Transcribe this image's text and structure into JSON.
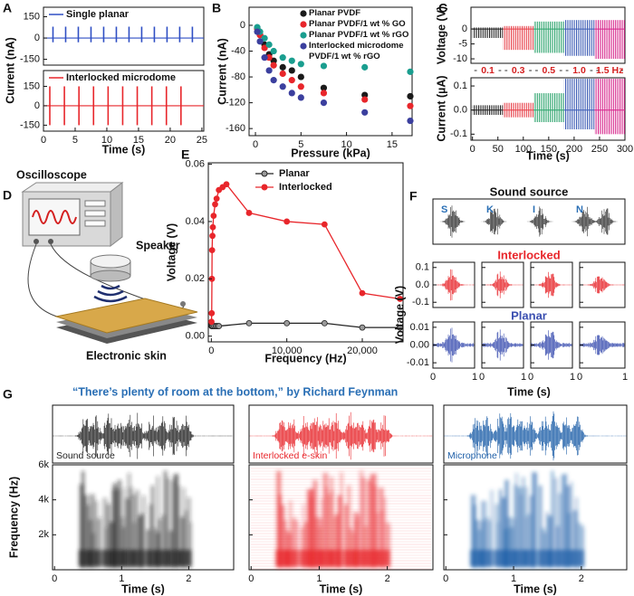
{
  "panel_labels": [
    "A",
    "B",
    "C",
    "D",
    "E",
    "F",
    "G"
  ],
  "chart_data": [
    {
      "type": "spike",
      "ylabel": "Current (nA)",
      "legend": "Single planar",
      "color": "#2f4fc4",
      "xlim": [
        0,
        25.3
      ],
      "ylim": [
        -191,
        217
      ],
      "yticks": [
        150,
        0,
        -150
      ],
      "x": [
        1.5,
        3.5,
        5.5,
        7.5,
        9.5,
        11.5,
        13.5,
        15.5,
        17.5,
        19.5,
        21.5,
        23.5
      ],
      "values": [
        80,
        80,
        80,
        80,
        80,
        80,
        80,
        80,
        80,
        80,
        80,
        80
      ],
      "troughs": [
        -30,
        -30,
        -30,
        -30,
        -30,
        -30,
        -30,
        -30,
        -30,
        -30,
        -30,
        -30
      ]
    },
    {
      "type": "spike",
      "legend": "Interlocked microdome",
      "color": "#e8262b",
      "xlim": [
        0,
        25.3
      ],
      "ylim": [
        -196,
        272
      ],
      "yticks": [
        150,
        0,
        -150
      ],
      "xticks": [
        0,
        5,
        10,
        15,
        20,
        25
      ],
      "xlabel": "Time (s)",
      "x": [
        1,
        3.3,
        5.6,
        7.9,
        10.2,
        12.5,
        14.8,
        17.1,
        19.4,
        21.7
      ],
      "values": [
        150,
        150,
        150,
        150,
        150,
        150,
        150,
        150,
        150,
        150
      ],
      "troughs": [
        -150,
        -150,
        -150,
        -150,
        -150,
        -150,
        -150,
        -150,
        -150,
        -150
      ]
    },
    {
      "type": "scatter",
      "ylabel": "Current (nA)",
      "xlabel": "Pressure (kPa)",
      "xlim": [
        -0.7,
        17.2
      ],
      "ylim": [
        -171,
        28
      ],
      "xticks": [
        0,
        5,
        10,
        15
      ],
      "yticks": [
        0,
        -40,
        -80,
        -120,
        -160
      ],
      "series": [
        {
          "name": "Planar PVDF",
          "color": "#1a1a1a",
          "x": [
            0.2,
            0.5,
            1,
            1.5,
            2,
            3,
            4,
            5,
            7.5,
            12,
            17
          ],
          "values": [
            -5,
            -15,
            -30,
            -45,
            -55,
            -65,
            -70,
            -80,
            -97,
            -108,
            -110
          ]
        },
        {
          "name": "Planar PVDF/1 wt % GO",
          "color": "#e8262b",
          "x": [
            0.2,
            0.5,
            1,
            1.5,
            2,
            3,
            4,
            5,
            7.5,
            12,
            17
          ],
          "values": [
            -5,
            -15,
            -35,
            -50,
            -62,
            -75,
            -85,
            -95,
            -105,
            -115,
            -125
          ]
        },
        {
          "name": "Planar PVDF/1 wt % rGO",
          "color": "#1a9e8f",
          "x": [
            0.2,
            0.5,
            1,
            1.5,
            2,
            3,
            4,
            5,
            7.5,
            12,
            17
          ],
          "values": [
            -3,
            -10,
            -20,
            -30,
            -40,
            -50,
            -55,
            -60,
            -63,
            -65,
            -72
          ]
        },
        {
          "name": "Interlocked microdome PVDF/1 wt % rGO",
          "color": "#3b3f9e",
          "x": [
            0.2,
            0.5,
            1,
            1.5,
            2,
            3,
            4,
            5,
            7.5,
            12,
            17
          ],
          "values": [
            -10,
            -25,
            -50,
            -70,
            -85,
            -95,
            -105,
            -112,
            -120,
            -135,
            -148
          ]
        }
      ]
    },
    {
      "type": "band",
      "ylabel": "Voltage (V)",
      "xlim": [
        -3,
        300
      ],
      "ylim": [
        -11.5,
        7.3
      ],
      "yticks": [
        0,
        -5,
        -10
      ],
      "annotations": [
        "0.1",
        "0.3",
        "0.5",
        "1.0",
        "1.5 Hz"
      ],
      "series": [
        {
          "color": "#222222",
          "range": [
            0,
            60
          ],
          "values": [
            -3,
            0.5
          ]
        },
        {
          "color": "#e8424b",
          "range": [
            60,
            120
          ],
          "values": [
            -7,
            1
          ]
        },
        {
          "color": "#2aa36b",
          "range": [
            120,
            180
          ],
          "values": [
            -8,
            2.5
          ]
        },
        {
          "color": "#3b5bb5",
          "range": [
            180,
            240
          ],
          "values": [
            -9,
            3
          ]
        },
        {
          "color": "#d6228a",
          "range": [
            240,
            300
          ],
          "values": [
            -10,
            3
          ]
        }
      ]
    },
    {
      "type": "band",
      "ylabel": "Current (µA)",
      "xlabel": "Time (s)",
      "xlim": [
        -3,
        300
      ],
      "ylim": [
        -0.125,
        0.134
      ],
      "yticks": [
        0.1,
        {
          "value": 0,
          "label": "0.0"
        },
        -0.1
      ],
      "xticks": [
        0,
        50,
        100,
        150,
        200,
        250,
        300
      ],
      "series": [
        {
          "color": "#222222",
          "range": [
            0,
            60
          ],
          "values": [
            -0.02,
            0.02
          ]
        },
        {
          "color": "#e8424b",
          "range": [
            60,
            120
          ],
          "values": [
            -0.03,
            0.03
          ]
        },
        {
          "color": "#2aa36b",
          "range": [
            120,
            180
          ],
          "values": [
            -0.05,
            0.07
          ]
        },
        {
          "color": "#3b5bb5",
          "range": [
            180,
            240
          ],
          "values": [
            -0.08,
            0.13
          ]
        },
        {
          "color": "#d6228a",
          "range": [
            240,
            300
          ],
          "values": [
            -0.1,
            0.13
          ]
        }
      ]
    },
    {
      "type": "line",
      "ylabel": "Voltage (V)",
      "xlabel": "Frequency (Hz)",
      "xlim": [
        -400,
        25400
      ],
      "ylim": [
        -0.002,
        0.0605
      ],
      "xticks": [
        0,
        {
          "value": 10000,
          "label": "10,000"
        },
        {
          "value": 20000,
          "label": "20,000"
        }
      ],
      "yticks": [
        {
          "value": 0,
          "label": "0.00"
        },
        {
          "value": 0.02,
          "label": "0.02"
        },
        {
          "value": 0.04,
          "label": "0.04"
        },
        {
          "value": 0.06,
          "label": "0.06"
        }
      ],
      "series": [
        {
          "name": "Planar",
          "color": "#222222",
          "x": [
            20,
            50,
            100,
            200,
            400,
            600,
            800,
            1000,
            5000,
            10000,
            15000,
            20000,
            25000
          ],
          "values": [
            0.004,
            0.0035,
            0.0035,
            0.0035,
            0.0035,
            0.0035,
            0.0035,
            0.0035,
            0.0045,
            0.0045,
            0.0045,
            0.003,
            0.003
          ]
        },
        {
          "name": "Interlocked",
          "color": "#e8262b",
          "x": [
            20,
            50,
            80,
            100,
            150,
            200,
            300,
            500,
            700,
            1000,
            1500,
            2000,
            5000,
            10000,
            15000,
            20000,
            25000
          ],
          "values": [
            0.005,
            0.008,
            0.02,
            0.03,
            0.035,
            0.038,
            0.042,
            0.046,
            0.048,
            0.051,
            0.052,
            0.053,
            0.043,
            0.04,
            0.039,
            0.015,
            0.013
          ]
        }
      ]
    }
  ],
  "diagram": {
    "labels": [
      "Oscilloscope",
      "Speaker",
      "Electronic skin"
    ]
  },
  "panel_f": {
    "title": "Sound source",
    "letters": [
      "S",
      "K",
      "I",
      "N"
    ],
    "xlim": [
      0,
      1
    ],
    "xticks": [
      0,
      1
    ],
    "xlabel": "Time (s)",
    "ylabel": "Voltage (V)",
    "rows": [
      {
        "title": "Interlocked",
        "ylim": [
          -0.13,
          0.13
        ],
        "yticks": [
          0.1,
          {
            "value": 0,
            "label": "0.0"
          },
          -0.1
        ]
      },
      {
        "title": "Planar",
        "ylim": [
          -0.013,
          0.013
        ],
        "yticks": [
          0.01,
          {
            "value": 0,
            "label": "0.00"
          },
          -0.01
        ]
      }
    ]
  },
  "panel_g": {
    "title": "“There’s plenty of room at the bottom,” by Richard Feynman",
    "columns": [
      "Sound source",
      "Interlocked e-skin",
      "Microphone"
    ],
    "xlim": [
      -0.03,
      2.67
    ],
    "xticks": [
      0,
      1,
      2
    ],
    "ylim": [
      0,
      6000
    ],
    "yticks": [
      {
        "value": 2000,
        "label": "2k"
      },
      {
        "value": 4000,
        "label": "4k"
      },
      {
        "value": 6000,
        "label": "6k"
      }
    ],
    "xlabel": "Time (s)",
    "ylabel": "Frequency (Hz)"
  }
}
